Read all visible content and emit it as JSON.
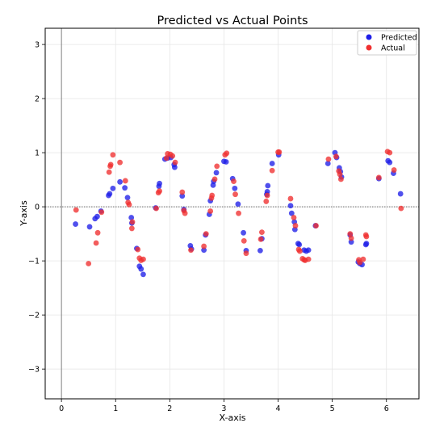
{
  "chart_data": {
    "type": "scatter",
    "title": "Predicted vs Actual Points",
    "xlabel": "X-axis",
    "ylabel": "Y-axis",
    "xlim": [
      -0.3,
      6.6
    ],
    "ylim": [
      -3.55,
      3.3
    ],
    "xticks": [
      0,
      1,
      2,
      3,
      4,
      5,
      6
    ],
    "yticks": [
      -3,
      -2,
      -1,
      0,
      1,
      2,
      3
    ],
    "xtick_labels": [
      "0",
      "1",
      "2",
      "3",
      "4",
      "5",
      "6"
    ],
    "ytick_labels": [
      "−3",
      "−2",
      "−1",
      "0",
      "1",
      "2",
      "3"
    ],
    "grid": true,
    "legend_position": "top-right",
    "reference_lines": {
      "vertical_x": 0,
      "horizontal_y": 0
    },
    "series": [
      {
        "name": "Predicted",
        "color": "#1f1fe8",
        "points": [
          [
            0.26,
            -0.32
          ],
          [
            0.52,
            -0.37
          ],
          [
            0.62,
            -0.22
          ],
          [
            0.66,
            -0.18
          ],
          [
            0.73,
            -0.08
          ],
          [
            0.87,
            0.21
          ],
          [
            0.89,
            0.24
          ],
          [
            0.95,
            0.34
          ],
          [
            1.08,
            0.46
          ],
          [
            1.17,
            0.35
          ],
          [
            1.22,
            0.17
          ],
          [
            1.29,
            -0.2
          ],
          [
            1.3,
            -0.3
          ],
          [
            1.39,
            -0.77
          ],
          [
            1.44,
            -1.1
          ],
          [
            1.47,
            -1.15
          ],
          [
            1.51,
            -1.25
          ],
          [
            1.74,
            -0.02
          ],
          [
            1.8,
            0.38
          ],
          [
            1.81,
            0.43
          ],
          [
            1.91,
            0.88
          ],
          [
            1.96,
            0.9
          ],
          [
            2.02,
            0.91
          ],
          [
            2.08,
            0.78
          ],
          [
            2.09,
            0.73
          ],
          [
            2.23,
            0.2
          ],
          [
            2.26,
            -0.05
          ],
          [
            2.38,
            -0.72
          ],
          [
            2.4,
            -0.78
          ],
          [
            2.63,
            -0.8
          ],
          [
            2.66,
            -0.52
          ],
          [
            2.73,
            -0.14
          ],
          [
            2.75,
            0.11
          ],
          [
            2.8,
            0.4
          ],
          [
            2.81,
            0.47
          ],
          [
            2.86,
            0.63
          ],
          [
            3.0,
            0.84
          ],
          [
            3.04,
            0.83
          ],
          [
            3.16,
            0.52
          ],
          [
            3.2,
            0.34
          ],
          [
            3.26,
            0.05
          ],
          [
            3.36,
            -0.48
          ],
          [
            3.41,
            -0.81
          ],
          [
            3.67,
            -0.81
          ],
          [
            3.7,
            -0.59
          ],
          [
            3.79,
            0.23
          ],
          [
            3.8,
            0.28
          ],
          [
            3.81,
            0.39
          ],
          [
            3.89,
            0.8
          ],
          [
            4.01,
            0.96
          ],
          [
            4.23,
            0.02
          ],
          [
            4.25,
            -0.12
          ],
          [
            4.3,
            -0.28
          ],
          [
            4.31,
            -0.42
          ],
          [
            4.37,
            -0.68
          ],
          [
            4.39,
            -0.7
          ],
          [
            4.48,
            -0.8
          ],
          [
            4.52,
            -0.82
          ],
          [
            4.56,
            -0.8
          ],
          [
            4.69,
            -0.35
          ],
          [
            4.92,
            0.8
          ],
          [
            5.05,
            1.0
          ],
          [
            5.08,
            0.91
          ],
          [
            5.13,
            0.72
          ],
          [
            5.15,
            0.65
          ],
          [
            5.17,
            0.55
          ],
          [
            5.33,
            -0.52
          ],
          [
            5.35,
            -0.65
          ],
          [
            5.48,
            -1.02
          ],
          [
            5.51,
            -1.05
          ],
          [
            5.55,
            -1.07
          ],
          [
            5.62,
            -0.7
          ],
          [
            5.63,
            -0.68
          ],
          [
            5.86,
            0.52
          ],
          [
            6.03,
            0.85
          ],
          [
            6.06,
            0.82
          ],
          [
            6.13,
            0.62
          ],
          [
            6.26,
            0.24
          ]
        ]
      },
      {
        "name": "Actual",
        "color": "#f03030",
        "points": [
          [
            0.27,
            -0.06
          ],
          [
            0.5,
            -1.05
          ],
          [
            0.64,
            -0.67
          ],
          [
            0.67,
            -0.48
          ],
          [
            0.74,
            -0.1
          ],
          [
            0.88,
            0.64
          ],
          [
            0.9,
            0.75
          ],
          [
            0.91,
            0.78
          ],
          [
            0.95,
            0.96
          ],
          [
            1.08,
            0.82
          ],
          [
            1.18,
            0.48
          ],
          [
            1.23,
            0.08
          ],
          [
            1.25,
            0.04
          ],
          [
            1.3,
            -0.4
          ],
          [
            1.31,
            -0.28
          ],
          [
            1.41,
            -0.79
          ],
          [
            1.44,
            -0.95
          ],
          [
            1.47,
            -0.99
          ],
          [
            1.51,
            -0.97
          ],
          [
            1.75,
            -0.03
          ],
          [
            1.79,
            0.26
          ],
          [
            1.81,
            0.29
          ],
          [
            1.94,
            0.9
          ],
          [
            1.96,
            0.98
          ],
          [
            2.01,
            0.97
          ],
          [
            2.05,
            0.94
          ],
          [
            2.1,
            0.82
          ],
          [
            2.23,
            0.27
          ],
          [
            2.26,
            -0.07
          ],
          [
            2.28,
            -0.12
          ],
          [
            2.39,
            -0.8
          ],
          [
            2.63,
            -0.73
          ],
          [
            2.67,
            -0.5
          ],
          [
            2.75,
            -0.08
          ],
          [
            2.77,
            0.16
          ],
          [
            2.78,
            0.21
          ],
          [
            2.83,
            0.51
          ],
          [
            2.87,
            0.75
          ],
          [
            3.02,
            0.96
          ],
          [
            3.05,
            0.99
          ],
          [
            3.18,
            0.47
          ],
          [
            3.21,
            0.23
          ],
          [
            3.27,
            -0.12
          ],
          [
            3.37,
            -0.63
          ],
          [
            3.41,
            -0.86
          ],
          [
            3.68,
            -0.6
          ],
          [
            3.7,
            -0.47
          ],
          [
            3.78,
            0.1
          ],
          [
            3.8,
            0.21
          ],
          [
            3.89,
            0.67
          ],
          [
            4.0,
            1.01
          ],
          [
            4.02,
            1.01
          ],
          [
            4.23,
            0.15
          ],
          [
            4.29,
            -0.2
          ],
          [
            4.32,
            -0.35
          ],
          [
            4.38,
            -0.79
          ],
          [
            4.4,
            -0.82
          ],
          [
            4.45,
            -0.96
          ],
          [
            4.48,
            -0.98
          ],
          [
            4.5,
            -0.99
          ],
          [
            4.56,
            -0.97
          ],
          [
            4.7,
            -0.35
          ],
          [
            4.93,
            0.88
          ],
          [
            5.07,
            0.93
          ],
          [
            5.12,
            0.66
          ],
          [
            5.14,
            0.6
          ],
          [
            5.16,
            0.51
          ],
          [
            5.33,
            -0.5
          ],
          [
            5.35,
            -0.58
          ],
          [
            5.49,
            -0.98
          ],
          [
            5.51,
            -1.03
          ],
          [
            5.57,
            -0.97
          ],
          [
            5.62,
            -0.52
          ],
          [
            5.63,
            -0.55
          ],
          [
            5.86,
            0.54
          ],
          [
            6.02,
            1.02
          ],
          [
            6.06,
            1.0
          ],
          [
            6.14,
            0.68
          ],
          [
            6.27,
            -0.03
          ]
        ]
      }
    ]
  }
}
